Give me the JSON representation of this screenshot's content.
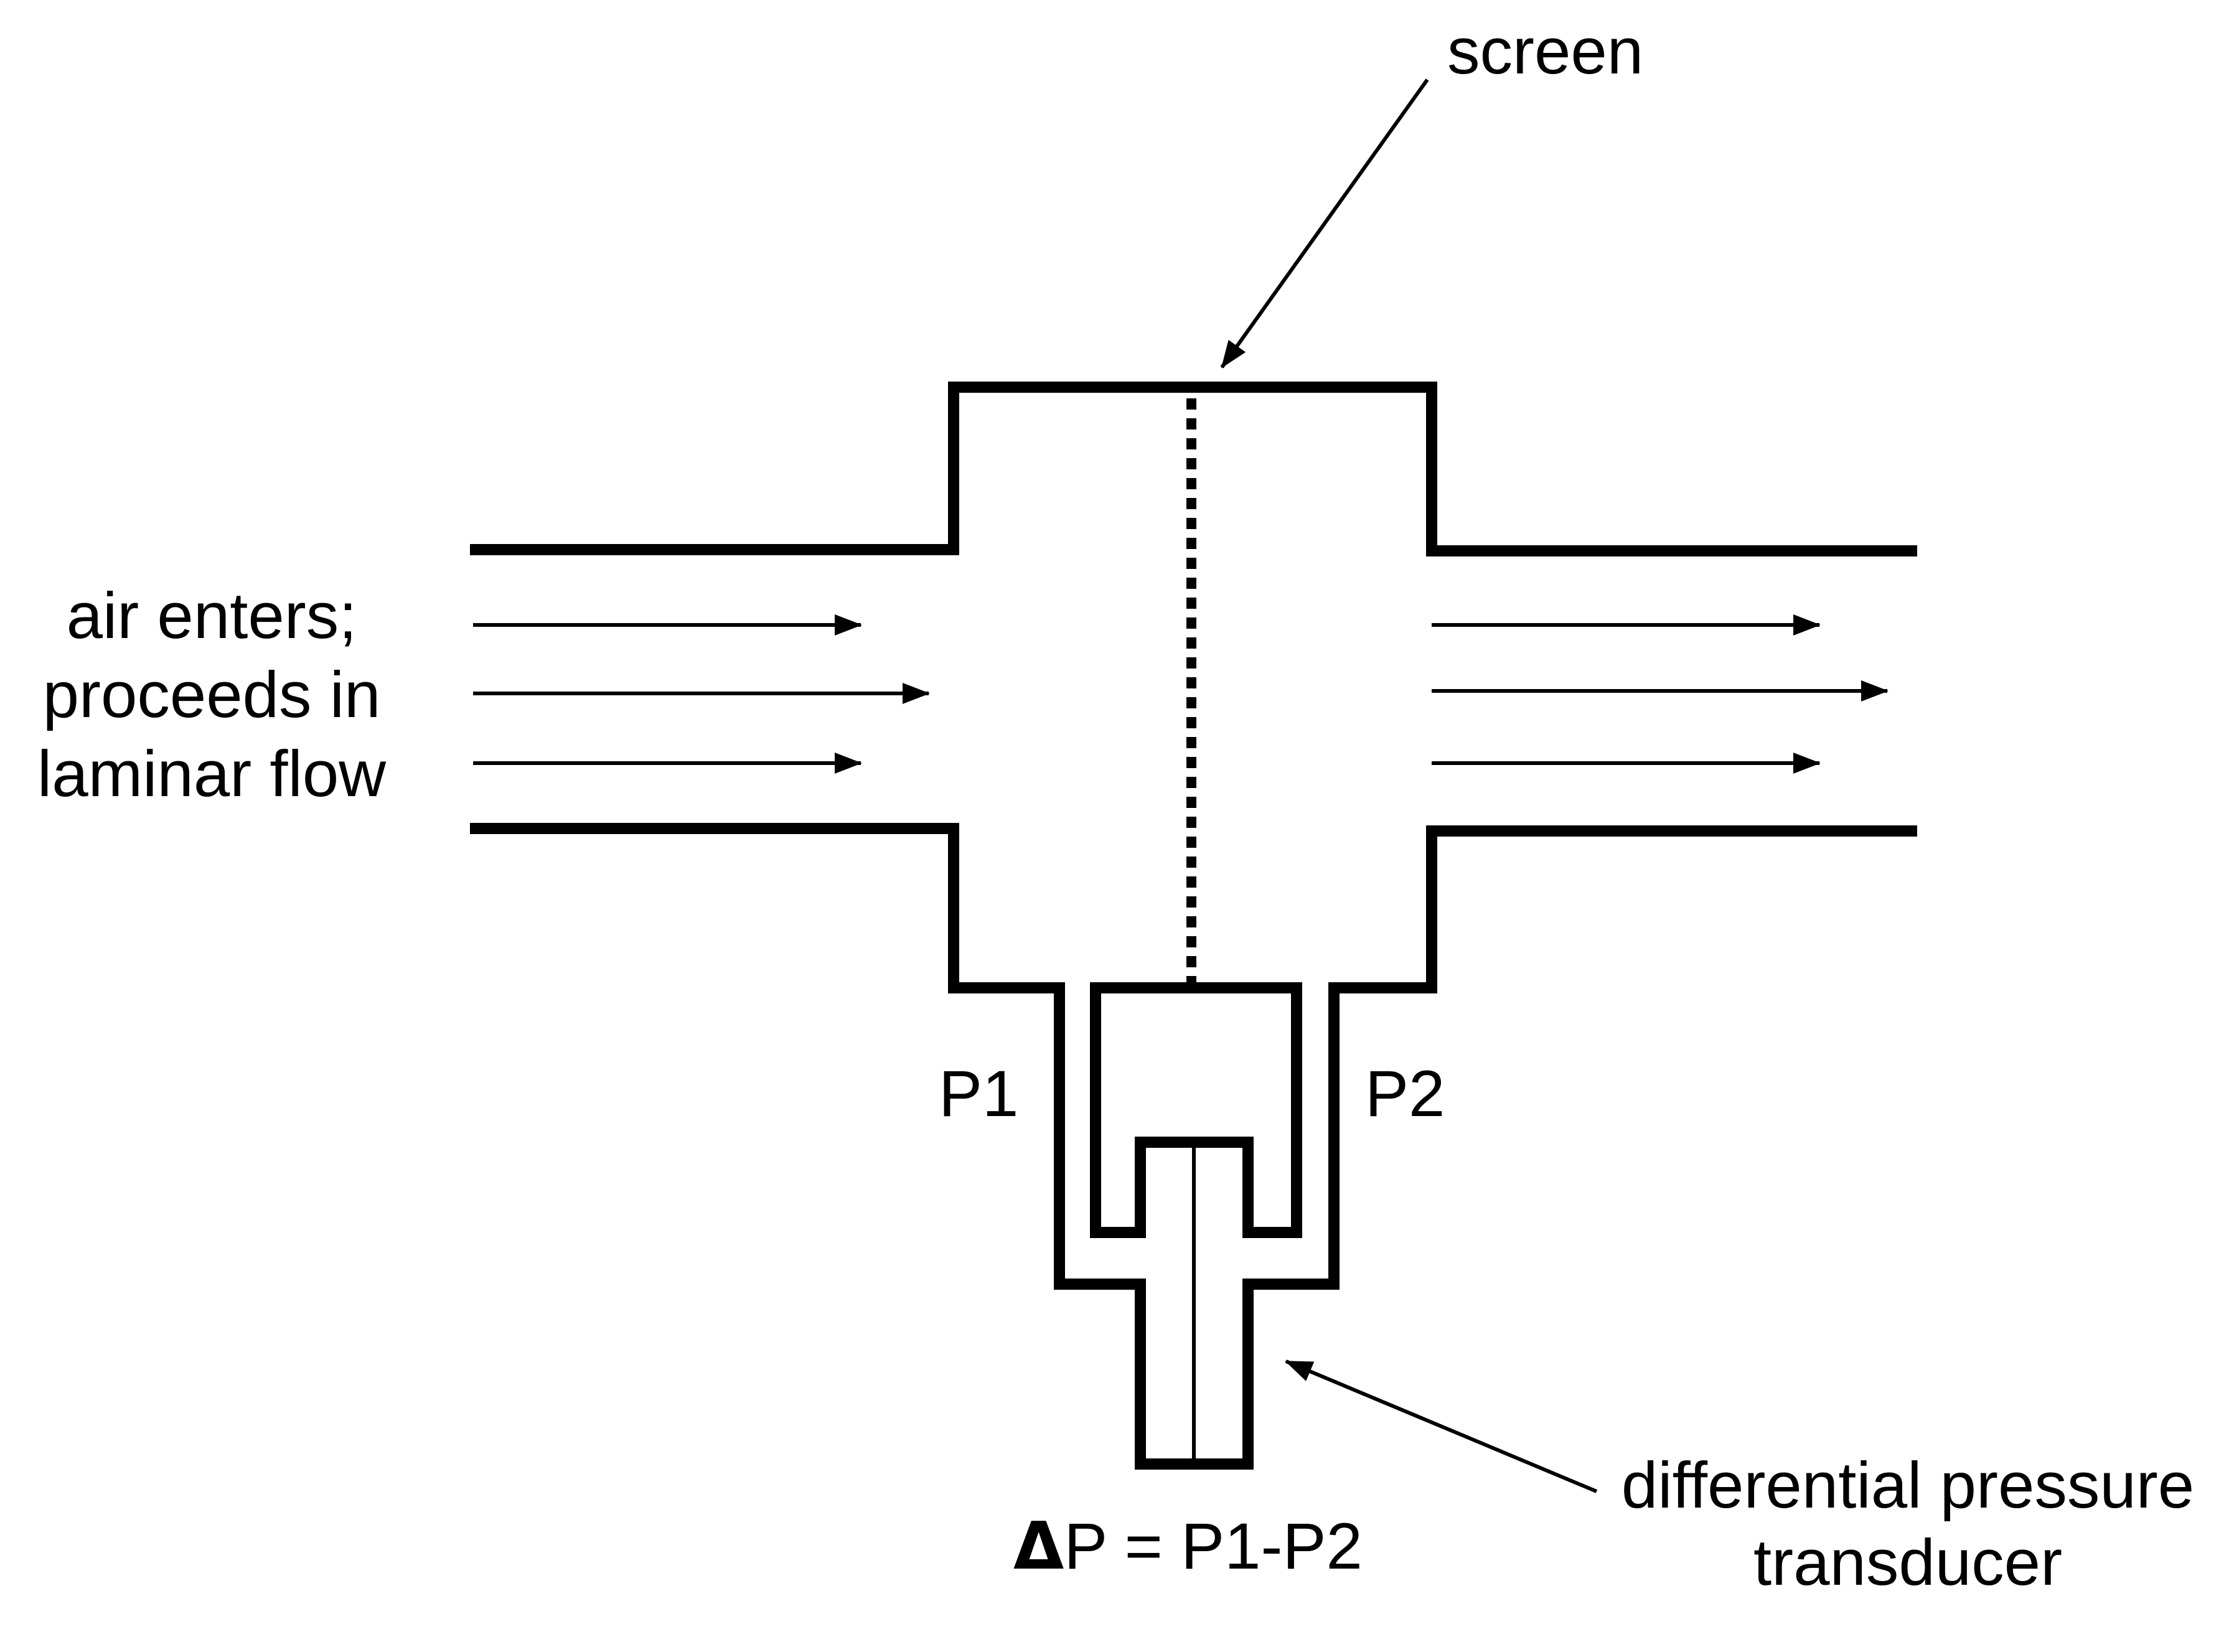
{
  "labels": {
    "screen": "screen",
    "air_line1": "air enters;",
    "air_line2": "proceeds in",
    "air_line3": "laminar flow",
    "p1": "P1",
    "p2": "P2",
    "delta_symbol": "Δ",
    "delta_rest": "P = P1-P2",
    "transducer_line1": "differential pressure",
    "transducer_line2": "transducer"
  },
  "colors": {
    "stroke": "#000000",
    "background": "#ffffff"
  }
}
